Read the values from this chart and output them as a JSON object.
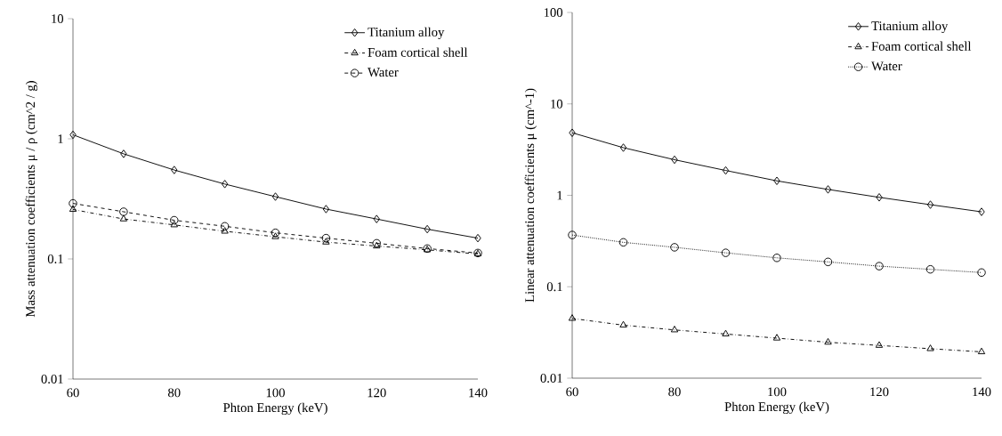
{
  "chart_data": [
    {
      "type": "line",
      "xlabel": "Phton Energy  (keV)",
      "ylabel": "Mass attenuation  coefficients  μ / ρ (cm^2 / g)",
      "x": [
        60,
        70,
        80,
        90,
        100,
        110,
        120,
        130,
        140
      ],
      "log": "y",
      "xlim": [
        60,
        140
      ],
      "xticks": [
        60,
        80,
        100,
        120,
        140
      ],
      "ylim": [
        0.01,
        10
      ],
      "yticks": [
        0.01,
        0.1,
        1,
        10
      ],
      "legend": "top right",
      "grid": false,
      "series": [
        {
          "name": "Titanium alloy",
          "color": "#000000",
          "marker": "diamond",
          "line_style": "solid",
          "values": [
            1.08,
            0.75,
            0.55,
            0.42,
            0.33,
            0.26,
            0.215,
            0.177,
            0.149
          ]
        },
        {
          "name": "Foam cortical shell",
          "color": "#000000",
          "marker": "triangle",
          "line_style": "dashdot",
          "values": [
            0.258,
            0.215,
            0.192,
            0.17,
            0.153,
            0.138,
            0.128,
            0.119,
            0.11
          ]
        },
        {
          "name": "Water",
          "color": "#000000",
          "marker": "circle",
          "line_style": "dashed",
          "values": [
            0.29,
            0.247,
            0.21,
            0.187,
            0.165,
            0.149,
            0.135,
            0.122,
            0.112
          ]
        }
      ]
    },
    {
      "type": "line",
      "xlabel": "Phton Energy  (keV)",
      "ylabel": "Linear  attenuation  coefficients  μ (cm^-1)",
      "x": [
        60,
        70,
        80,
        90,
        100,
        110,
        120,
        130,
        140
      ],
      "log": "y",
      "xlim": [
        60,
        140
      ],
      "xticks": [
        60,
        80,
        100,
        120,
        140
      ],
      "ylim": [
        0.01,
        100
      ],
      "yticks": [
        0.01,
        0.1,
        1,
        10,
        100
      ],
      "legend": "top right",
      "grid": false,
      "series": [
        {
          "name": "Titanium alloy",
          "color": "#000000",
          "marker": "diamond",
          "line_style": "solid",
          "values": [
            4.83,
            3.32,
            2.45,
            1.87,
            1.44,
            1.16,
            0.95,
            0.79,
            0.66
          ]
        },
        {
          "name": "Foam cortical shell",
          "color": "#000000",
          "marker": "triangle",
          "line_style": "dashdot",
          "values": [
            0.045,
            0.038,
            0.0337,
            0.0304,
            0.0274,
            0.0247,
            0.0228,
            0.021,
            0.0194
          ]
        },
        {
          "name": "Water",
          "color": "#000000",
          "marker": "circle",
          "line_style": "dotted",
          "values": [
            0.368,
            0.306,
            0.27,
            0.235,
            0.207,
            0.187,
            0.168,
            0.155,
            0.143
          ]
        }
      ]
    }
  ]
}
